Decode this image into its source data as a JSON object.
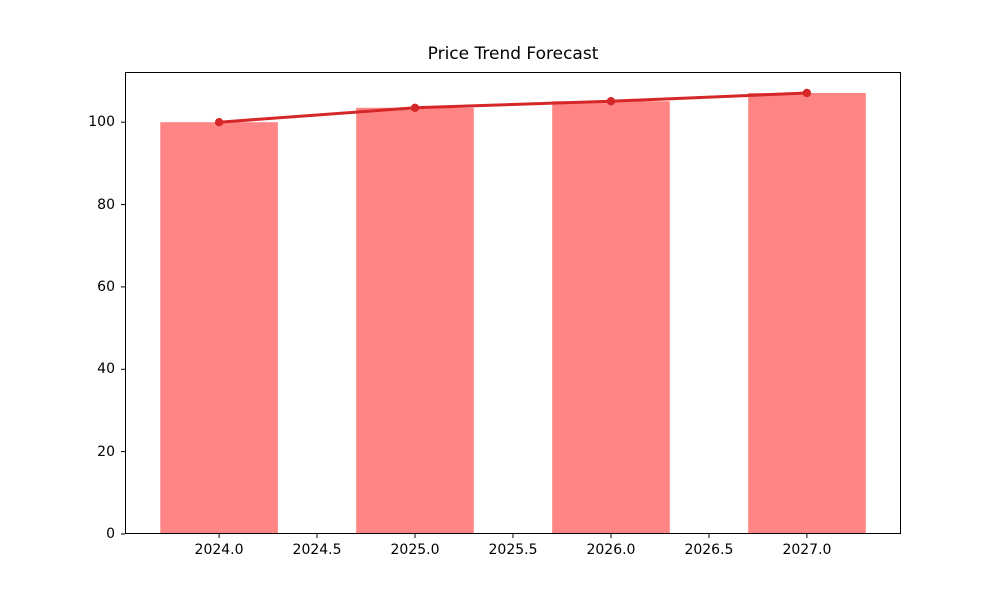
{
  "figure": {
    "background": "#ffffff"
  },
  "chart_data": {
    "type": "bar",
    "title": "Price Trend Forecast",
    "xlabel": "",
    "ylabel": "",
    "x": [
      2024,
      2025,
      2026,
      2027
    ],
    "series": [
      {
        "name": "price-bars",
        "type": "bar",
        "values": [
          100,
          103.5,
          105.1,
          107.1
        ]
      },
      {
        "name": "trend-line",
        "type": "line",
        "values": [
          100,
          103.5,
          105.1,
          107.1
        ]
      }
    ],
    "bar_width": 0.6,
    "xlim": [
      2023.52,
      2027.48
    ],
    "ylim": [
      0,
      112.2
    ],
    "x_ticks": [
      {
        "value": 2024.0,
        "label": "2024.0"
      },
      {
        "value": 2024.5,
        "label": "2024.5"
      },
      {
        "value": 2025.0,
        "label": "2025.0"
      },
      {
        "value": 2025.5,
        "label": "2025.5"
      },
      {
        "value": 2026.0,
        "label": "2026.0"
      },
      {
        "value": 2026.5,
        "label": "2026.5"
      },
      {
        "value": 2027.0,
        "label": "2027.0"
      }
    ],
    "y_ticks": [
      {
        "value": 0,
        "label": "0"
      },
      {
        "value": 20,
        "label": "20"
      },
      {
        "value": 40,
        "label": "40"
      },
      {
        "value": 60,
        "label": "60"
      },
      {
        "value": 80,
        "label": "80"
      },
      {
        "value": 100,
        "label": "100"
      }
    ],
    "colors": {
      "bar": "#ff8585",
      "line": "#d62728",
      "axis": "#000000",
      "text": "#000000"
    },
    "grid": false,
    "legend": "none",
    "marker": "circle",
    "line_width": 3,
    "marker_radius": 4.2
  }
}
